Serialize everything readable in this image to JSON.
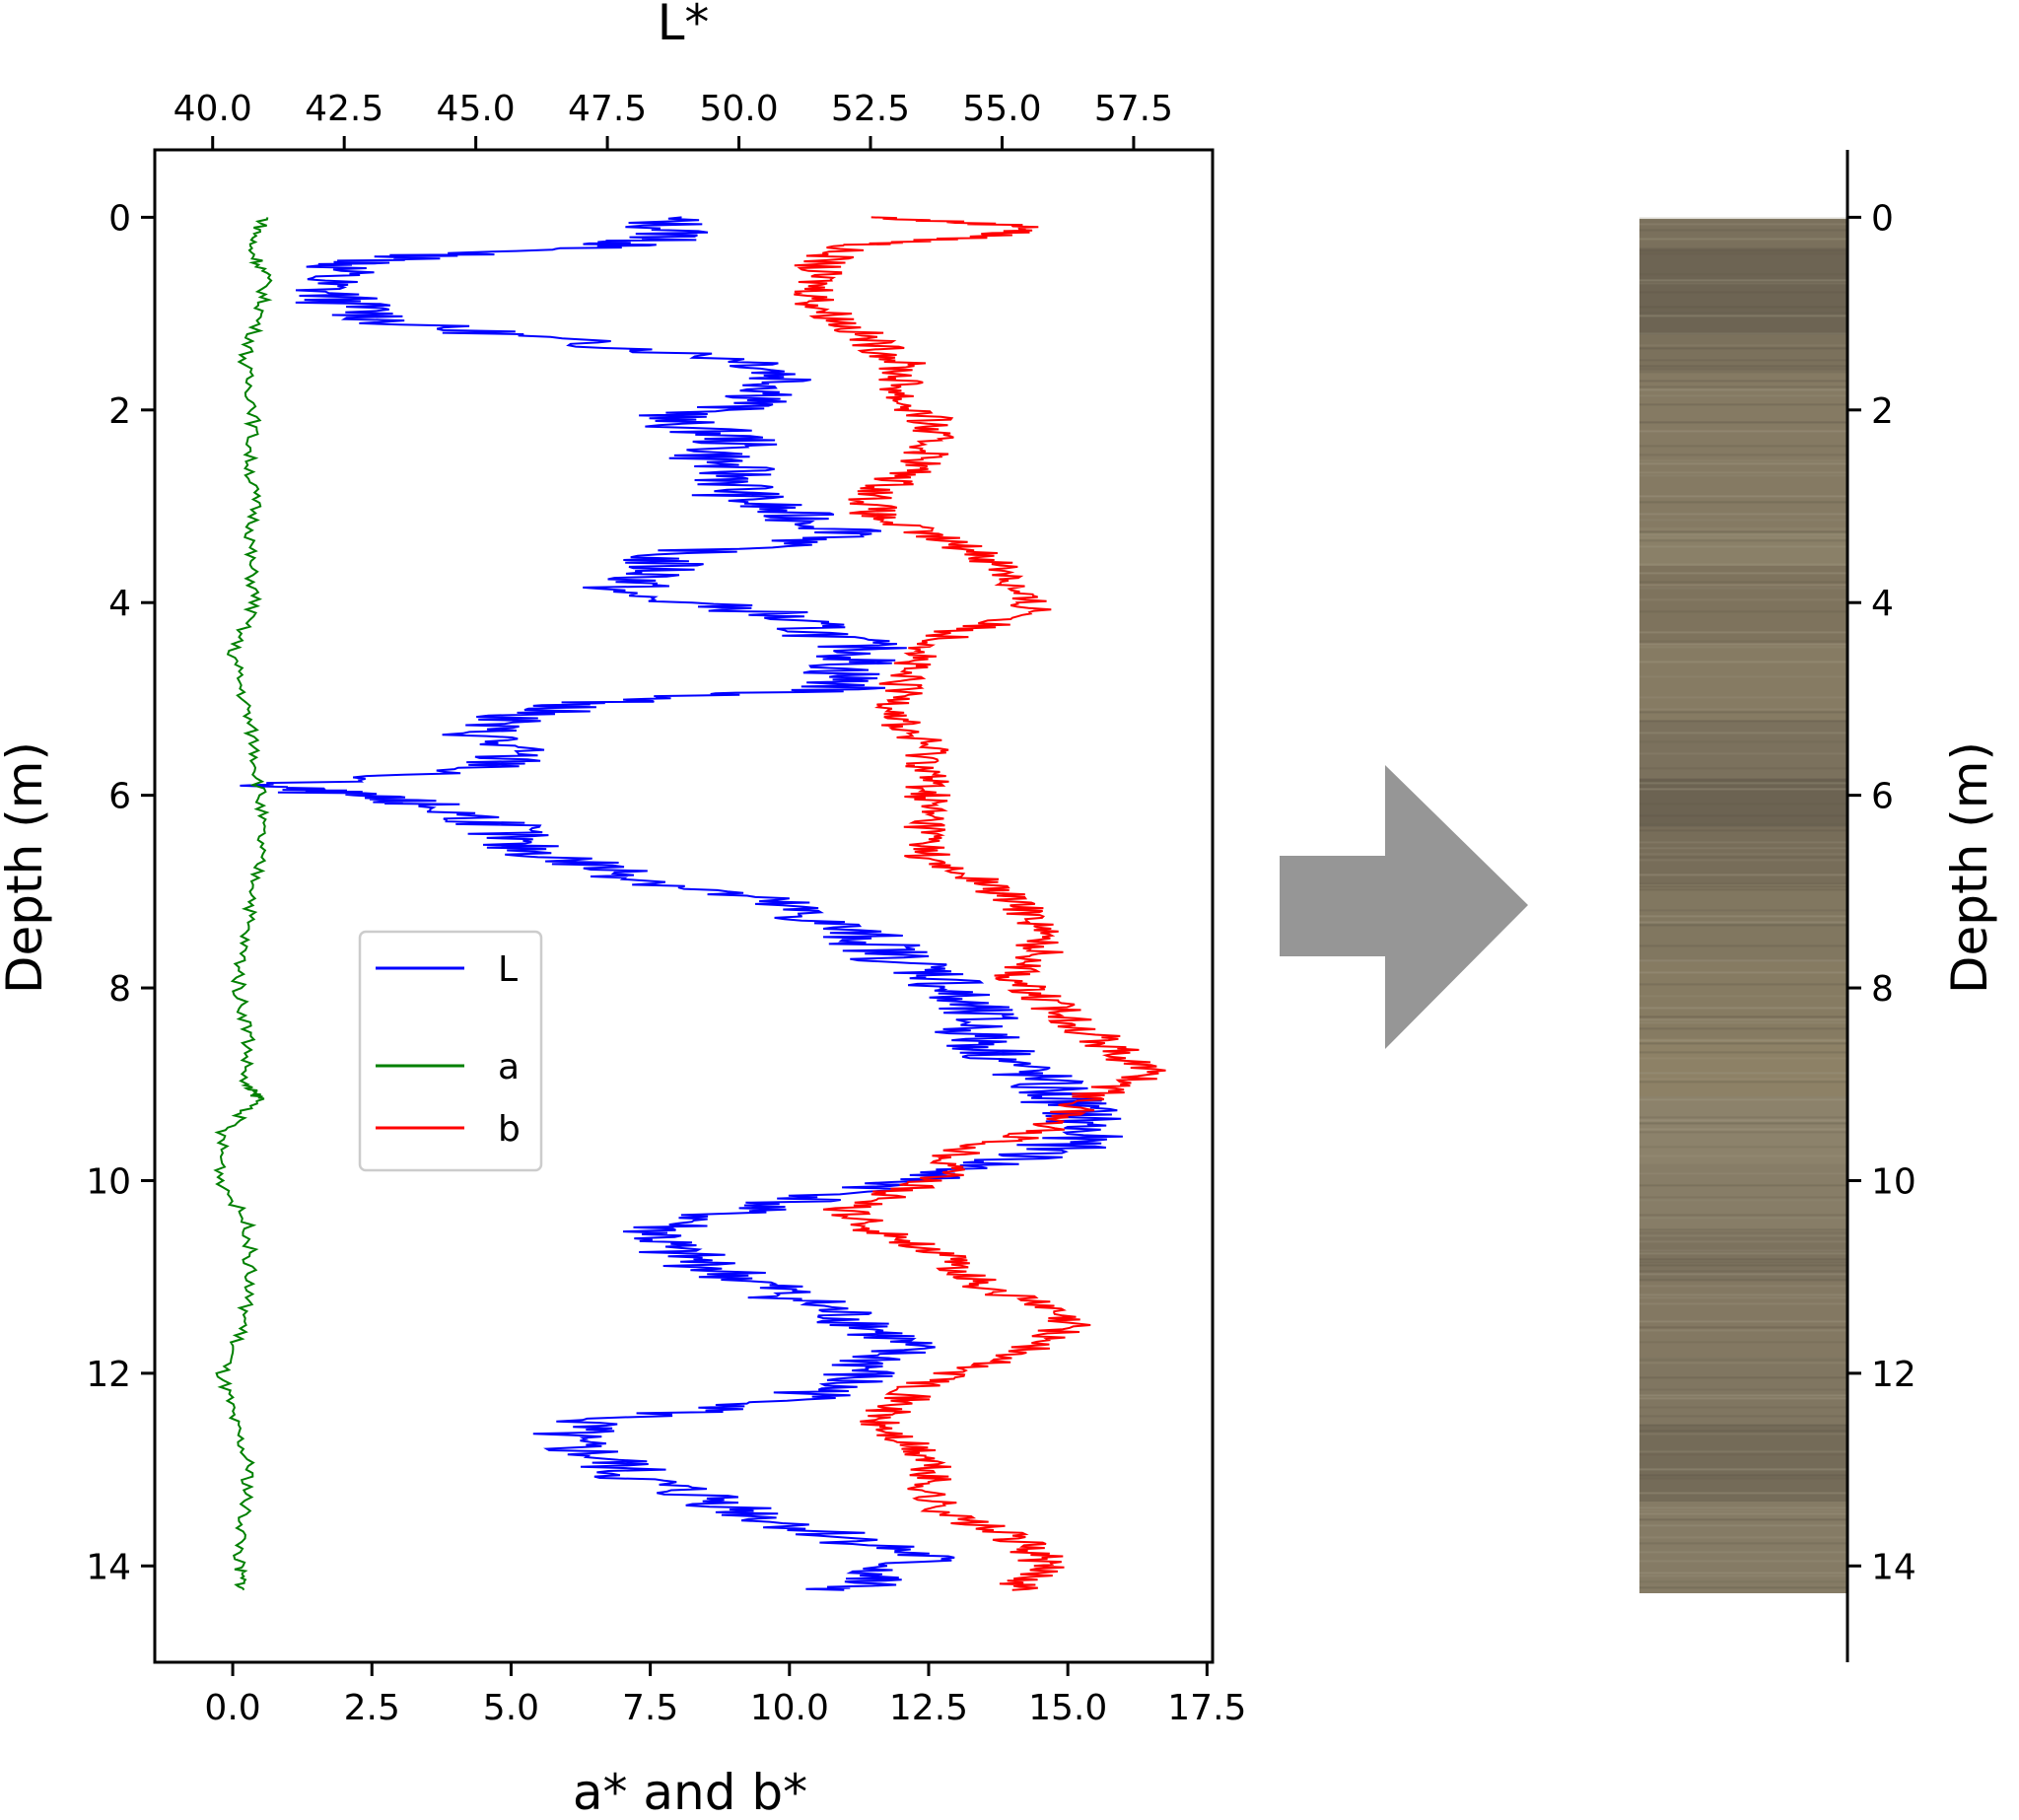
{
  "chart_data": [
    {
      "type": "line",
      "title": "",
      "xlabel_top": "L*",
      "xlabel_bottom": "a* and b*",
      "ylabel": "Depth (m)",
      "y_inverted": true,
      "ylim": [
        -0.7,
        15.0
      ],
      "xlim_top": [
        38.9,
        59.0
      ],
      "xlim_bottom": [
        -1.4,
        17.6
      ],
      "top_ticks": [
        40.0,
        42.5,
        45.0,
        47.5,
        50.0,
        52.5,
        55.0,
        57.5
      ],
      "top_tick_labels": [
        "40.0",
        "42.5",
        "45.0",
        "47.5",
        "50.0",
        "52.5",
        "55.0",
        "57.5"
      ],
      "bottom_ticks": [
        0.0,
        2.5,
        5.0,
        7.5,
        10.0,
        12.5,
        15.0,
        17.5
      ],
      "bottom_tick_labels": [
        "0.0",
        "2.5",
        "5.0",
        "7.5",
        "10.0",
        "12.5",
        "15.0",
        "17.5"
      ],
      "y_ticks": [
        0,
        2,
        4,
        6,
        8,
        10,
        12,
        14
      ],
      "y_tick_labels": [
        "0",
        "2",
        "4",
        "6",
        "8",
        "10",
        "12",
        "14"
      ],
      "legend": {
        "placement": "center-left",
        "entries": [
          "L",
          "a",
          "b"
        ]
      },
      "series": [
        {
          "name": "L",
          "color": "#0000ff",
          "axis": "top",
          "depth": [
            0.0,
            0.2,
            0.3,
            0.4,
            0.5,
            0.7,
            0.9,
            1.1,
            1.3,
            1.5,
            1.7,
            1.9,
            2.1,
            2.3,
            2.5,
            2.7,
            2.9,
            3.1,
            3.3,
            3.5,
            3.7,
            3.9,
            4.1,
            4.3,
            4.5,
            4.7,
            4.9,
            5.0,
            5.1,
            5.3,
            5.5,
            5.7,
            5.9,
            6.0,
            6.1,
            6.3,
            6.5,
            6.7,
            6.9,
            7.1,
            7.3,
            7.5,
            7.7,
            7.9,
            8.1,
            8.3,
            8.5,
            8.7,
            8.9,
            9.1,
            9.3,
            9.5,
            9.7,
            9.9,
            10.1,
            10.3,
            10.5,
            10.7,
            10.9,
            11.1,
            11.3,
            11.5,
            11.7,
            11.9,
            12.1,
            12.3,
            12.5,
            12.7,
            12.9,
            13.1,
            13.3,
            13.5,
            13.7,
            13.9,
            14.1,
            14.25
          ],
          "values": [
            48.5,
            48.8,
            47.5,
            44.0,
            42.5,
            42.0,
            42.5,
            43.5,
            47.0,
            50.5,
            51.0,
            50.5,
            48.5,
            50.0,
            49.5,
            50.0,
            50.0,
            51.0,
            52.5,
            48.5,
            48.5,
            47.5,
            50.5,
            51.5,
            52.5,
            52.0,
            52.0,
            48.0,
            46.5,
            45.0,
            45.5,
            45.5,
            41.0,
            42.5,
            44.0,
            45.5,
            45.5,
            47.0,
            48.5,
            50.5,
            51.5,
            52.5,
            53.0,
            54.0,
            54.0,
            54.5,
            54.5,
            55.0,
            55.5,
            56.0,
            56.5,
            56.5,
            56.0,
            54.0,
            52.5,
            50.0,
            48.5,
            48.5,
            49.5,
            50.5,
            51.5,
            52.5,
            53.0,
            52.5,
            52.0,
            51.0,
            47.0,
            46.5,
            47.5,
            48.0,
            49.5,
            50.5,
            52.0,
            53.5,
            52.5,
            52.0
          ]
        },
        {
          "name": "a",
          "color": "#008000",
          "axis": "bottom",
          "depth": [
            0.0,
            0.3,
            0.6,
            1.0,
            1.5,
            2.0,
            2.5,
            3.0,
            3.5,
            4.0,
            4.5,
            5.0,
            5.5,
            6.0,
            6.5,
            7.0,
            7.5,
            8.0,
            8.5,
            9.0,
            9.15,
            9.5,
            10.0,
            10.5,
            11.0,
            11.5,
            12.0,
            12.5,
            13.0,
            13.5,
            14.0,
            14.25
          ],
          "values": [
            0.6,
            0.3,
            0.6,
            0.5,
            0.2,
            0.4,
            0.3,
            0.4,
            0.3,
            0.4,
            0.0,
            0.2,
            0.4,
            0.5,
            0.5,
            0.4,
            0.2,
            0.1,
            0.3,
            0.2,
            0.5,
            -0.2,
            -0.2,
            0.3,
            0.3,
            0.2,
            -0.2,
            0.0,
            0.3,
            0.2,
            0.1,
            0.2
          ]
        },
        {
          "name": "b",
          "color": "#ff0000",
          "axis": "bottom",
          "depth": [
            0.0,
            0.1,
            0.2,
            0.3,
            0.5,
            0.7,
            0.9,
            1.1,
            1.3,
            1.5,
            1.7,
            1.9,
            2.1,
            2.3,
            2.5,
            2.7,
            2.9,
            3.1,
            3.3,
            3.5,
            3.7,
            3.9,
            4.1,
            4.3,
            4.5,
            4.7,
            4.9,
            5.1,
            5.3,
            5.5,
            5.7,
            5.9,
            6.1,
            6.3,
            6.5,
            6.7,
            6.9,
            7.1,
            7.3,
            7.5,
            7.7,
            7.9,
            8.1,
            8.3,
            8.5,
            8.7,
            8.9,
            9.1,
            9.3,
            9.5,
            9.7,
            9.9,
            10.1,
            10.3,
            10.5,
            10.7,
            10.9,
            11.1,
            11.3,
            11.5,
            11.7,
            11.9,
            12.1,
            12.3,
            12.5,
            12.7,
            12.9,
            13.1,
            13.3,
            13.5,
            13.7,
            13.9,
            14.1,
            14.25
          ],
          "values": [
            11.5,
            14.5,
            13.5,
            11.0,
            10.5,
            10.5,
            10.5,
            11.0,
            11.5,
            12.0,
            12.0,
            12.0,
            12.5,
            12.5,
            12.5,
            12.0,
            11.5,
            11.5,
            12.5,
            13.5,
            14.0,
            14.0,
            14.5,
            13.0,
            12.5,
            12.0,
            12.0,
            12.0,
            12.0,
            12.5,
            12.5,
            12.5,
            12.5,
            12.5,
            12.5,
            12.5,
            13.5,
            14.0,
            14.5,
            14.5,
            14.5,
            14.0,
            14.5,
            15.0,
            15.5,
            16.0,
            16.5,
            15.5,
            15.0,
            14.5,
            13.0,
            13.0,
            12.0,
            11.0,
            11.5,
            12.5,
            13.0,
            13.5,
            14.5,
            15.0,
            14.5,
            13.5,
            12.5,
            12.0,
            11.5,
            12.0,
            12.5,
            12.5,
            12.5,
            13.0,
            14.0,
            14.5,
            14.5,
            14.0
          ]
        }
      ]
    },
    {
      "type": "color_column",
      "ylabel": "Depth (m)",
      "y_inverted": true,
      "ylim": [
        -0.7,
        15.0
      ],
      "y_ticks": [
        0,
        2,
        4,
        6,
        8,
        10,
        12,
        14
      ],
      "y_tick_labels": [
        "0",
        "2",
        "4",
        "6",
        "8",
        "10",
        "12",
        "14"
      ],
      "column_range": [
        0.0,
        14.25
      ],
      "base_color": "#857a63",
      "bands": [
        {
          "from": 0.0,
          "to": 0.3,
          "color": "#7a705c"
        },
        {
          "from": 0.3,
          "to": 1.2,
          "color": "#6d6453"
        },
        {
          "from": 1.2,
          "to": 1.6,
          "color": "#7b715c"
        },
        {
          "from": 1.6,
          "to": 3.2,
          "color": "#857a63"
        },
        {
          "from": 3.2,
          "to": 3.6,
          "color": "#8a8068"
        },
        {
          "from": 3.6,
          "to": 4.4,
          "color": "#7e735d"
        },
        {
          "from": 4.4,
          "to": 5.2,
          "color": "#867b63"
        },
        {
          "from": 5.2,
          "to": 5.8,
          "color": "#7b715d"
        },
        {
          "from": 5.8,
          "to": 6.3,
          "color": "#6c6352"
        },
        {
          "from": 6.3,
          "to": 6.9,
          "color": "#776d59"
        },
        {
          "from": 6.9,
          "to": 7.7,
          "color": "#817760"
        },
        {
          "from": 7.7,
          "to": 8.5,
          "color": "#867b62"
        },
        {
          "from": 8.5,
          "to": 9.1,
          "color": "#8d8166"
        },
        {
          "from": 9.1,
          "to": 9.8,
          "color": "#8c826b"
        },
        {
          "from": 9.8,
          "to": 10.5,
          "color": "#877d67"
        },
        {
          "from": 10.5,
          "to": 11.0,
          "color": "#7c725e"
        },
        {
          "from": 11.0,
          "to": 11.8,
          "color": "#837862"
        },
        {
          "from": 11.8,
          "to": 12.5,
          "color": "#807661"
        },
        {
          "from": 12.5,
          "to": 13.3,
          "color": "#746b58"
        },
        {
          "from": 13.3,
          "to": 14.25,
          "color": "#857b65"
        }
      ]
    }
  ],
  "arrow": {
    "color": "#969696"
  }
}
